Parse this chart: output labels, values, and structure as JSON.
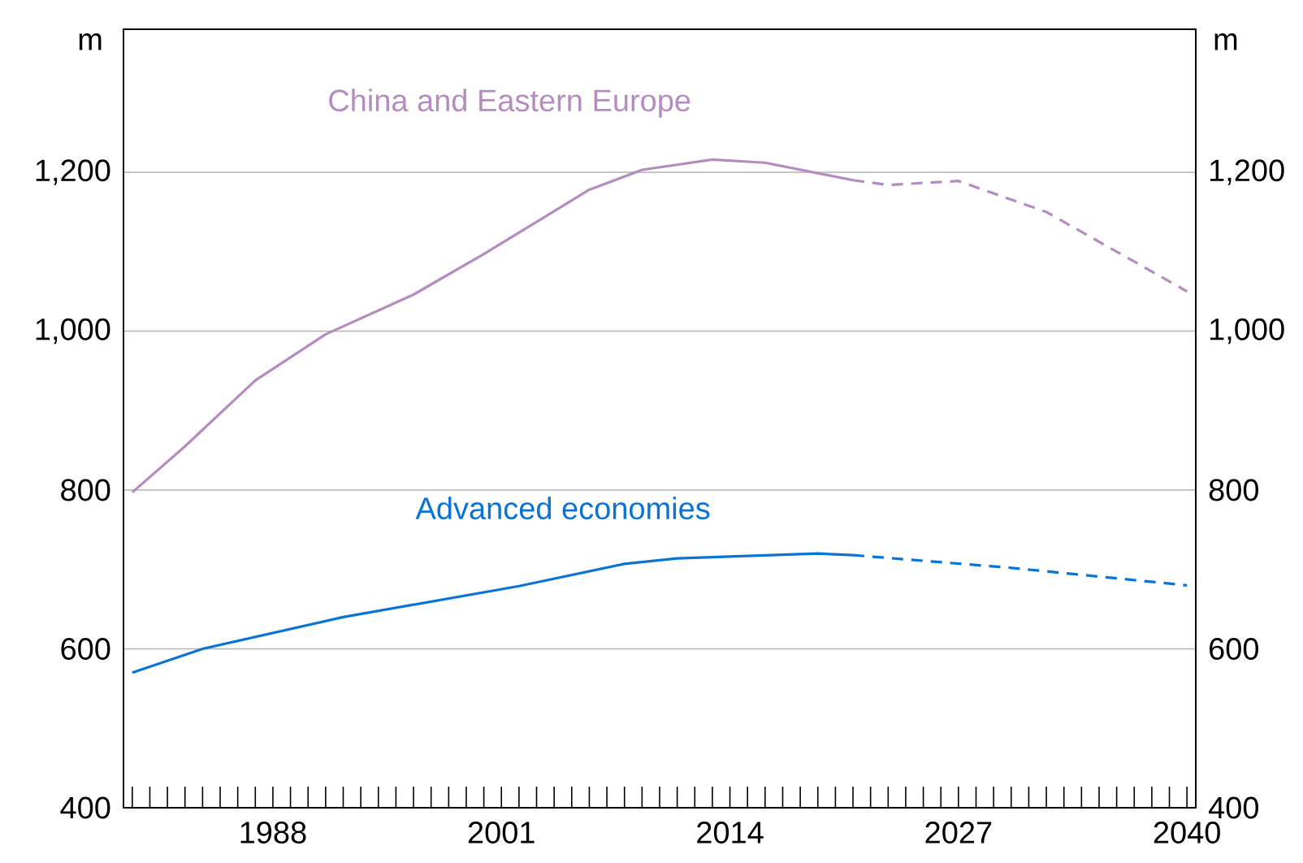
{
  "chart_data": {
    "type": "line",
    "ylabel": "m",
    "y2label": "m",
    "xlim": [
      1979.5,
      2040.5
    ],
    "xticks": [
      {
        "value": 1980,
        "label": null
      },
      {
        "value": 1981,
        "label": null
      },
      {
        "value": 1982,
        "label": null
      },
      {
        "value": 1983,
        "label": null
      },
      {
        "value": 1984,
        "label": null
      },
      {
        "value": 1985,
        "label": null
      },
      {
        "value": 1986,
        "label": null
      },
      {
        "value": 1987,
        "label": null
      },
      1988,
      {
        "value": 1989,
        "label": null
      },
      {
        "value": 1990,
        "label": null
      },
      {
        "value": 1991,
        "label": null
      },
      {
        "value": 1992,
        "label": null
      },
      {
        "value": 1993,
        "label": null
      },
      {
        "value": 1994,
        "label": null
      },
      {
        "value": 1995,
        "label": null
      },
      {
        "value": 1996,
        "label": null
      },
      {
        "value": 1997,
        "label": null
      },
      {
        "value": 1998,
        "label": null
      },
      {
        "value": 1999,
        "label": null
      },
      {
        "value": 2000,
        "label": null
      },
      2001,
      {
        "value": 2002,
        "label": null
      },
      {
        "value": 2003,
        "label": null
      },
      {
        "value": 2004,
        "label": null
      },
      {
        "value": 2005,
        "label": null
      },
      {
        "value": 2006,
        "label": null
      },
      {
        "value": 2007,
        "label": null
      },
      {
        "value": 2008,
        "label": null
      },
      {
        "value": 2009,
        "label": null
      },
      {
        "value": 2010,
        "label": null
      },
      {
        "value": 2011,
        "label": null
      },
      {
        "value": 2012,
        "label": null
      },
      {
        "value": 2013,
        "label": null
      },
      2014,
      {
        "value": 2015,
        "label": null
      },
      {
        "value": 2016,
        "label": null
      },
      {
        "value": 2017,
        "label": null
      },
      {
        "value": 2018,
        "label": null
      },
      {
        "value": 2019,
        "label": null
      },
      {
        "value": 2020,
        "label": null
      },
      {
        "value": 2021,
        "label": null
      },
      {
        "value": 2022,
        "label": null
      },
      {
        "value": 2023,
        "label": null
      },
      {
        "value": 2024,
        "label": null
      },
      {
        "value": 2025,
        "label": null
      },
      {
        "value": 2026,
        "label": null
      },
      2027,
      {
        "value": 2028,
        "label": null
      },
      {
        "value": 2029,
        "label": null
      },
      {
        "value": 2030,
        "label": null
      },
      {
        "value": 2031,
        "label": null
      },
      {
        "value": 2032,
        "label": null
      },
      {
        "value": 2033,
        "label": null
      },
      {
        "value": 2034,
        "label": null
      },
      {
        "value": 2035,
        "label": null
      },
      {
        "value": 2036,
        "label": null
      },
      {
        "value": 2037,
        "label": null
      },
      {
        "value": 2038,
        "label": null
      },
      {
        "value": 2039,
        "label": null
      },
      2040
    ],
    "ylim": [
      400,
      1380
    ],
    "yticks": [
      {
        "value": 400,
        "label": "400"
      },
      {
        "value": 600,
        "label": "600"
      },
      {
        "value": 800,
        "label": "800"
      },
      {
        "value": 1000,
        "label": "1,000"
      },
      {
        "value": 1200,
        "label": "1,200"
      }
    ],
    "y2lim": [
      400,
      1380
    ],
    "y2ticks": [
      {
        "value": 400,
        "label": "400"
      },
      {
        "value": 600,
        "label": "600"
      },
      {
        "value": 800,
        "label": "800"
      },
      {
        "value": 1000,
        "label": "1,000"
      },
      {
        "value": 1200,
        "label": "1,200"
      }
    ],
    "grid": "y",
    "legend": false,
    "marker": "none",
    "series": [
      {
        "name": "China and Eastern Europe",
        "color": "#b48cc0",
        "line_style": "solid",
        "x": [
          1980,
          1983,
          1987,
          1991,
          1996,
          2000,
          2006,
          2009,
          2013,
          2016,
          2021
        ],
        "values": [
          797,
          855,
          938,
          996,
          1046,
          1097,
          1178,
          1203,
          1216,
          1212,
          1190
        ]
      },
      {
        "color": "#b48cc0",
        "line_style": "dashed",
        "x": [
          2021,
          2023,
          2027,
          2032,
          2040
        ],
        "values": [
          1190,
          1184,
          1189,
          1150,
          1050
        ]
      },
      {
        "name": "Advanced economies",
        "color": "#0a74d4",
        "line_style": "solid",
        "x": [
          1980,
          1984,
          1992,
          2002,
          2008,
          2011,
          2019,
          2021
        ],
        "values": [
          570,
          600,
          640,
          679,
          707,
          714,
          720,
          718
        ]
      },
      {
        "color": "#0a74d4",
        "line_style": "dashed",
        "x": [
          2021,
          2030,
          2040
        ],
        "values": [
          718,
          702,
          680
        ]
      }
    ]
  }
}
